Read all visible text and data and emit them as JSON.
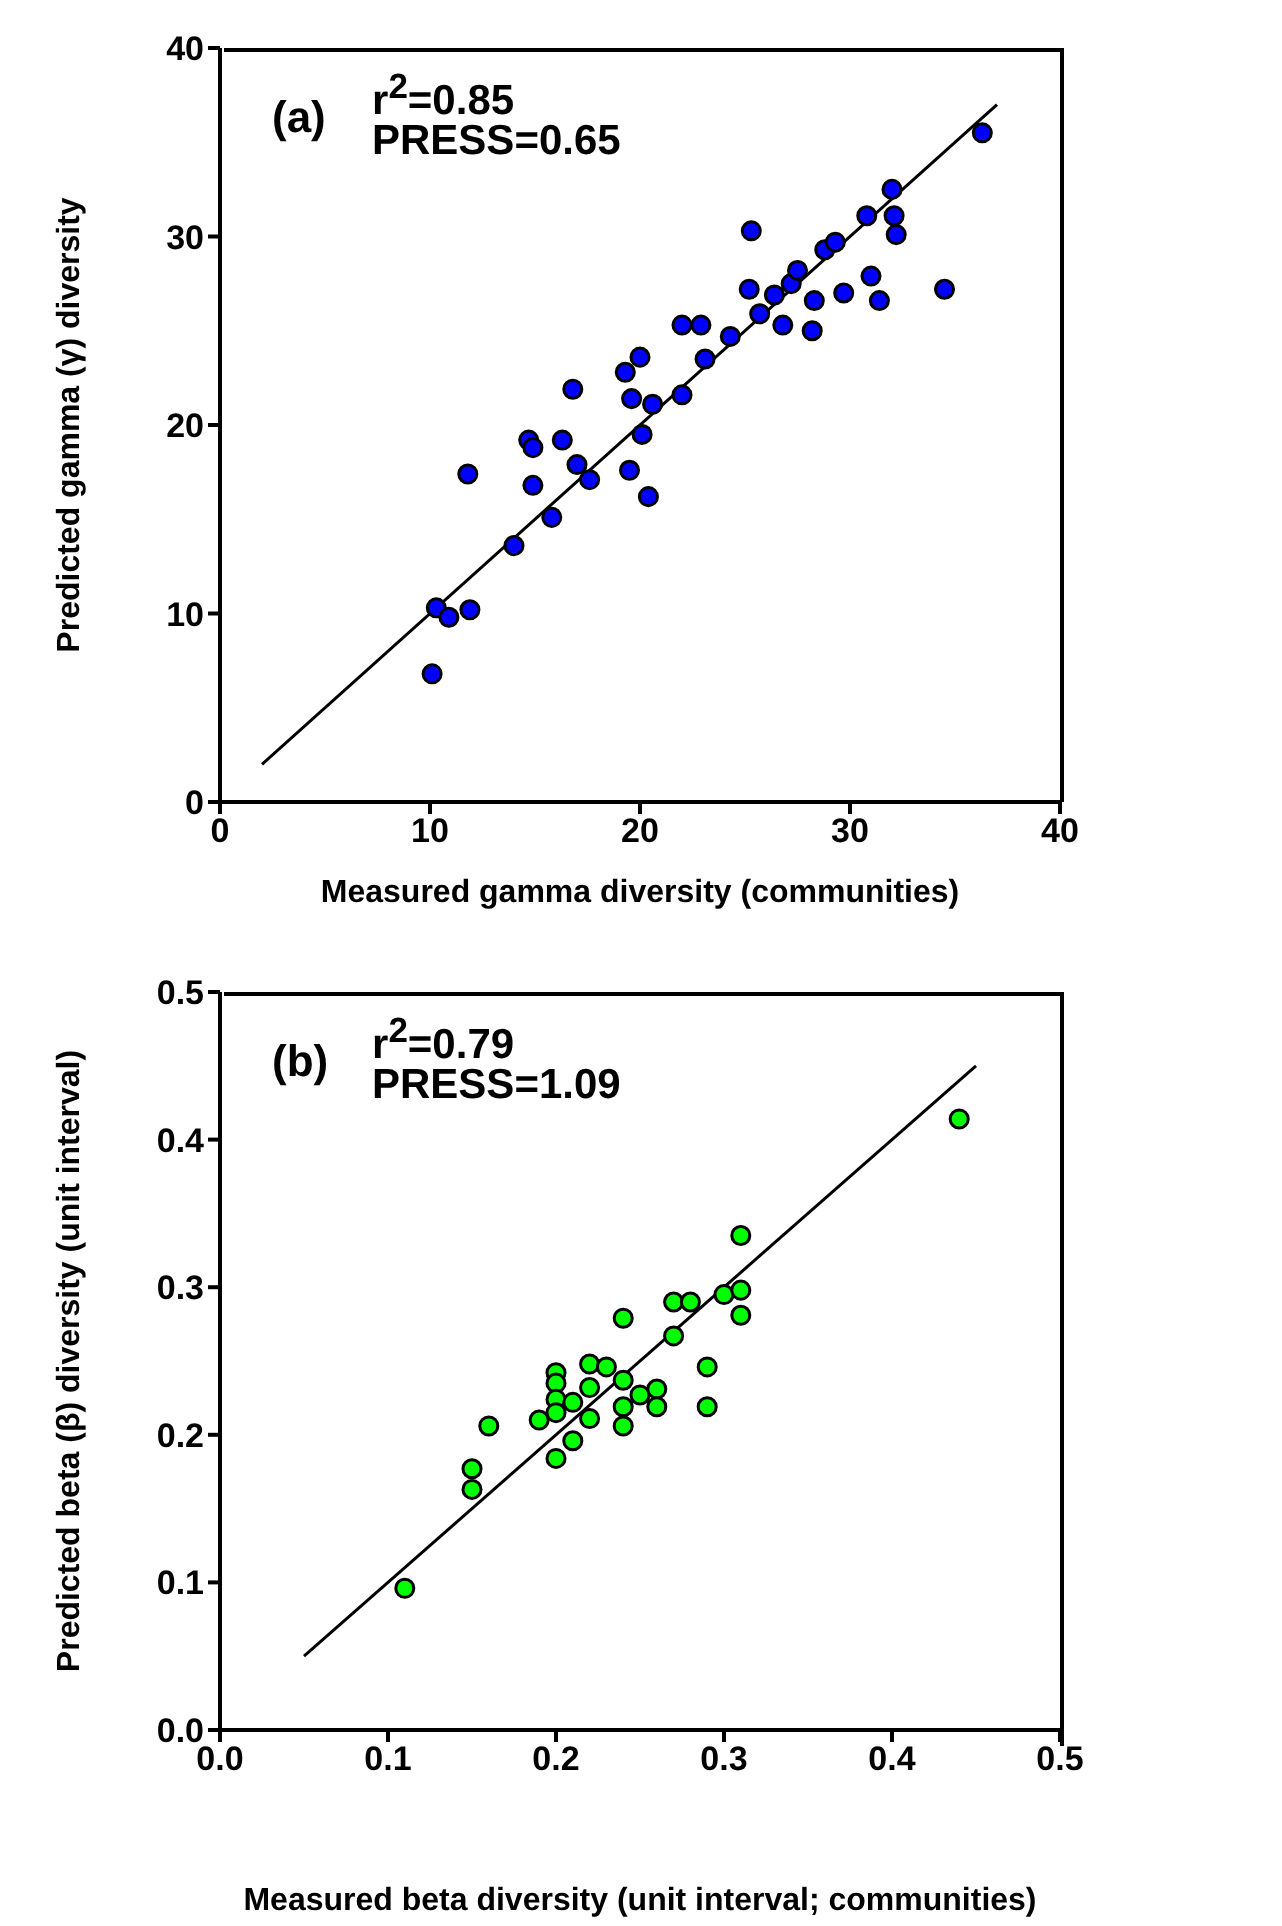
{
  "chart_data": [
    {
      "type": "scatter",
      "xlabel": "Measured gamma diversity (communities)",
      "ylabel": "Predicted gamma (γ) diversity",
      "annotations": [
        "(a)",
        "r$^{2}$=0.85",
        "PRESS=0.65"
      ],
      "xlim": [
        0,
        40
      ],
      "ylim": [
        0,
        40
      ],
      "xticks": [
        0,
        10,
        20,
        30,
        40
      ],
      "yticks": [
        0,
        10,
        20,
        30,
        40
      ],
      "marker": "circle",
      "series": [
        {
          "color": "#0000ff",
          "x": [
            10.1,
            10.3,
            10.9,
            11.9,
            11.8,
            14.0,
            14.7,
            14.9,
            14.9,
            15.8,
            16.3,
            16.8,
            17.0,
            17.6,
            19.3,
            20.0,
            19.6,
            20.6,
            20.1,
            19.5,
            20.4,
            22.0,
            22.0,
            22.9,
            23.1,
            24.3,
            25.3,
            25.2,
            25.7,
            26.4,
            26.8,
            27.2,
            27.5,
            28.3,
            28.2,
            28.8,
            29.3,
            29.7,
            30.8,
            31.0,
            31.4,
            32.0,
            32.1,
            32.2,
            34.5,
            36.3
          ],
          "values": [
            6.8,
            10.3,
            9.8,
            10.2,
            17.4,
            13.6,
            19.2,
            18.8,
            16.8,
            15.1,
            19.2,
            21.9,
            17.9,
            17.1,
            22.8,
            23.6,
            21.4,
            21.1,
            19.5,
            17.6,
            16.2,
            21.6,
            25.3,
            25.3,
            23.5,
            24.7,
            30.3,
            27.2,
            25.9,
            26.9,
            25.3,
            27.5,
            28.2,
            26.6,
            25.0,
            29.3,
            29.7,
            27.0,
            31.1,
            27.9,
            26.6,
            32.5,
            31.1,
            30.1,
            27.2,
            35.5
          ]
        },
        {
          "type": "line",
          "color": "#000000",
          "marker": "none",
          "x": [
            2,
            37
          ],
          "values": [
            2,
            37
          ]
        }
      ]
    },
    {
      "type": "scatter",
      "xlabel": "Measured beta diversity (unit interval; communities)",
      "ylabel": "Predicted beta (β) diversity (unit interval)",
      "annotations": [
        "(b)",
        "r$^{2}$=0.79",
        "PRESS=1.09"
      ],
      "xlim": [
        0,
        0.5
      ],
      "ylim": [
        0,
        0.5
      ],
      "xticks": [
        {
          "value": 0,
          "label": "0.0"
        },
        0.1,
        0.2,
        0.3,
        0.4,
        0.5
      ],
      "yticks": [
        {
          "value": 0,
          "label": "0.0"
        },
        0.1,
        0.2,
        0.3,
        0.4,
        0.5
      ],
      "marker": "circle",
      "series": [
        {
          "color": "#00ff00",
          "x": [
            0.11,
            0.15,
            0.15,
            0.16,
            0.19,
            0.2,
            0.2,
            0.2,
            0.2,
            0.2,
            0.21,
            0.21,
            0.22,
            0.22,
            0.22,
            0.23,
            0.24,
            0.24,
            0.24,
            0.24,
            0.25,
            0.26,
            0.26,
            0.27,
            0.27,
            0.28,
            0.29,
            0.29,
            0.3,
            0.31,
            0.31,
            0.31,
            0.44
          ],
          "values": [
            0.096,
            0.177,
            0.163,
            0.206,
            0.21,
            0.242,
            0.235,
            0.224,
            0.215,
            0.184,
            0.196,
            0.222,
            0.248,
            0.232,
            0.211,
            0.246,
            0.279,
            0.237,
            0.219,
            0.206,
            0.227,
            0.231,
            0.219,
            0.29,
            0.267,
            0.29,
            0.246,
            0.219,
            0.295,
            0.335,
            0.298,
            0.281,
            0.414
          ]
        },
        {
          "type": "line",
          "color": "#000000",
          "marker": "none",
          "x": [
            0.05,
            0.45
          ],
          "values": [
            0.05,
            0.45
          ]
        }
      ]
    }
  ]
}
